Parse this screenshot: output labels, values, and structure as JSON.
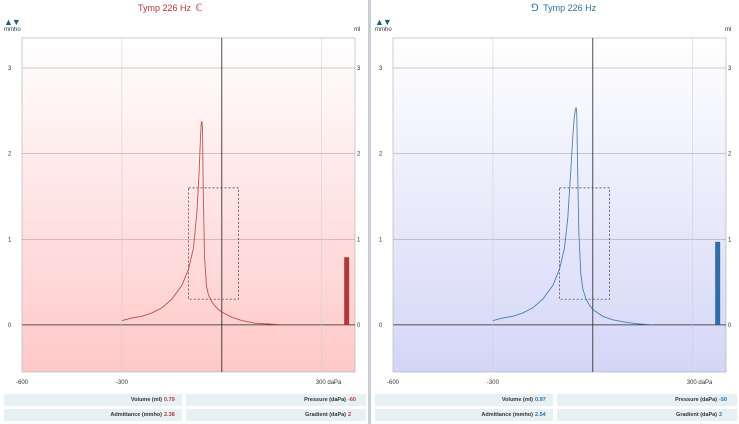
{
  "left": {
    "title": "Tymp 226 Hz",
    "ear_icon": "right-ear-icon",
    "color": "#b0383b",
    "y_unit_left": "mmho",
    "y_unit_right": "ml",
    "y_ticks": [
      "0",
      "1",
      "2",
      "3"
    ],
    "x_ticks": [
      "-600",
      "-300",
      "300 daPa"
    ],
    "readouts": {
      "volume_label": "Volume (ml)",
      "volume_value": "0.79",
      "pressure_label": "Pressure (daPa)",
      "pressure_value": "-60",
      "admittance_label": "Admittance (mmho)",
      "admittance_value": "2.38",
      "gradient_label": "Gradient (daPa)",
      "gradient_value": "2"
    }
  },
  "right": {
    "title": "Tymp 226 Hz",
    "ear_icon": "left-ear-icon",
    "color": "#2e6ea3",
    "y_unit_left": "mmho",
    "y_unit_right": "ml",
    "y_ticks": [
      "0",
      "1",
      "2",
      "3"
    ],
    "x_ticks": [
      "-600",
      "-300",
      "300 daPa"
    ],
    "readouts": {
      "volume_label": "Volume (ml)",
      "volume_value": "0.97",
      "pressure_label": "Pressure (daPa)",
      "pressure_value": "-50",
      "admittance_label": "Admittance (mmho)",
      "admittance_value": "2.54",
      "gradient_label": "Gradient (daPa)",
      "gradient_value": "2"
    }
  },
  "chart_data": [
    {
      "type": "line",
      "x_range": [
        -600,
        400
      ],
      "y_range": [
        -0.55,
        3.35
      ],
      "x_ticks": [
        -600,
        -300,
        300
      ],
      "y_ticks": [
        0,
        1,
        2,
        3
      ],
      "series": [
        {
          "x": [
            -300,
            -270,
            -240,
            -210,
            -180,
            -150,
            -120,
            -100,
            -85,
            -75,
            -68,
            -64,
            -62,
            -60,
            -58,
            -56,
            -52,
            -46,
            -40,
            -30,
            -20,
            -10,
            0,
            30,
            60,
            100,
            140,
            180
          ],
          "y": [
            0.05,
            0.08,
            0.1,
            0.14,
            0.2,
            0.3,
            0.46,
            0.65,
            0.9,
            1.3,
            1.8,
            2.2,
            2.35,
            2.38,
            2.3,
            1.6,
            0.8,
            0.45,
            0.35,
            0.27,
            0.22,
            0.18,
            0.15,
            0.09,
            0.05,
            0.02,
            0.01,
            0
          ]
        }
      ],
      "compensated_box": {
        "x": [
          -100,
          50
        ],
        "y": [
          0.3,
          1.6
        ]
      },
      "volume_bar": {
        "x": 375,
        "value": 0.79
      }
    },
    {
      "type": "line",
      "x_range": [
        -600,
        400
      ],
      "y_range": [
        -0.55,
        3.35
      ],
      "x_ticks": [
        -600,
        -300,
        300
      ],
      "y_ticks": [
        0,
        1,
        2,
        3
      ],
      "series": [
        {
          "x": [
            -300,
            -270,
            -240,
            -210,
            -180,
            -150,
            -120,
            -100,
            -85,
            -75,
            -66,
            -60,
            -56,
            -52,
            -50,
            -48,
            -46,
            -42,
            -36,
            -30,
            -20,
            -10,
            0,
            30,
            60,
            100,
            140,
            180
          ],
          "y": [
            0.05,
            0.08,
            0.1,
            0.14,
            0.2,
            0.3,
            0.46,
            0.65,
            0.9,
            1.25,
            1.8,
            2.2,
            2.42,
            2.52,
            2.54,
            2.45,
            1.9,
            1.1,
            0.6,
            0.42,
            0.3,
            0.23,
            0.18,
            0.1,
            0.06,
            0.03,
            0.01,
            0
          ]
        }
      ],
      "compensated_box": {
        "x": [
          -100,
          50
        ],
        "y": [
          0.3,
          1.6
        ]
      },
      "volume_bar": {
        "x": 375,
        "value": 0.97
      }
    }
  ]
}
